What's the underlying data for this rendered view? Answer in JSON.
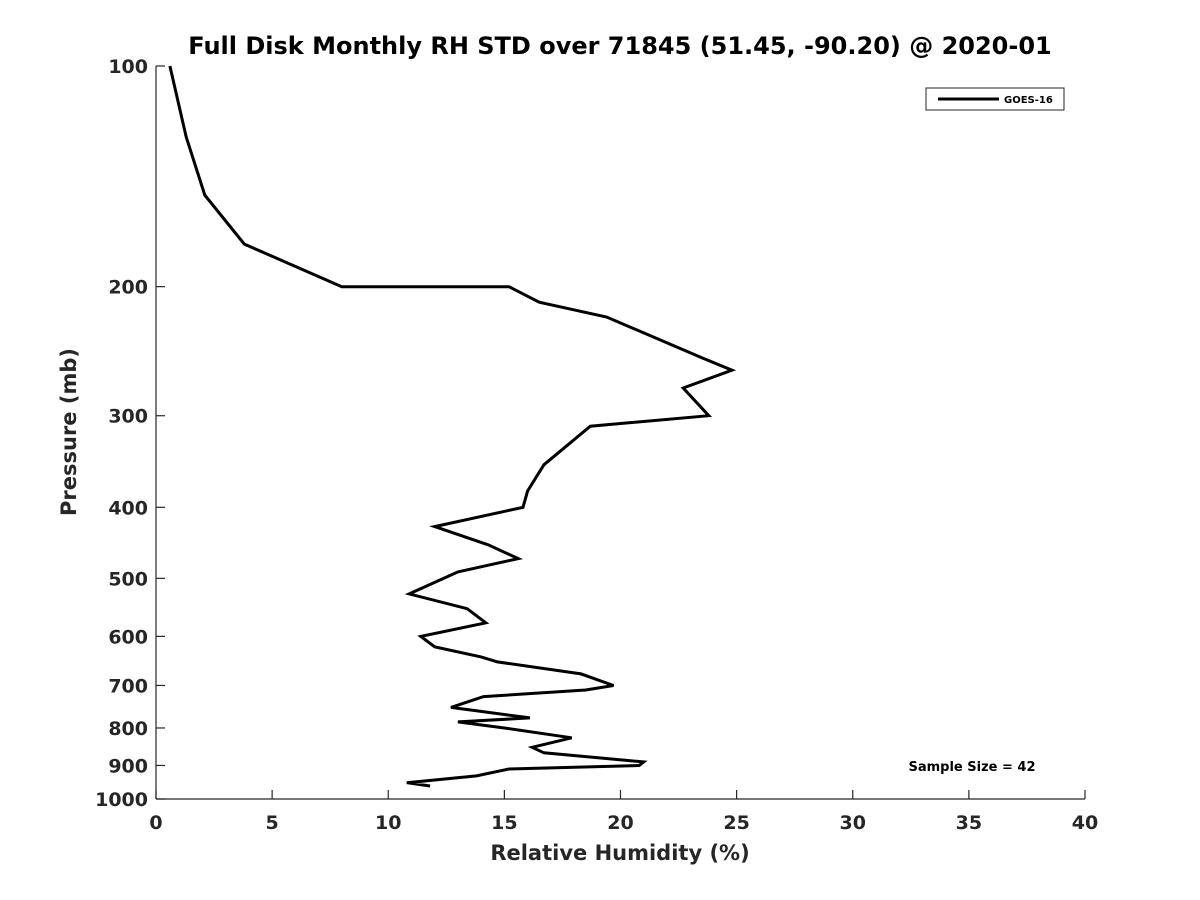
{
  "chart_data": {
    "type": "line",
    "title": "Full Disk Monthly RH STD over 71845 (51.45, -90.20) @ 2020-01",
    "xlabel": "Relative Humidity (%)",
    "ylabel": "Pressure (mb)",
    "xlim": [
      0,
      40
    ],
    "ylim": [
      100,
      1000
    ],
    "yscale": "log",
    "yreversed": true,
    "grid": false,
    "xticks": [
      "0",
      "5",
      "10",
      "15",
      "20",
      "25",
      "30",
      "35",
      "40"
    ],
    "yticks": [
      "100",
      "200",
      "300",
      "400",
      "500",
      "600",
      "700",
      "800",
      "900",
      "1000"
    ],
    "legend_position": "top-right",
    "annotation": "Sample Size = 42",
    "series": [
      {
        "name": "GOES-16",
        "color": "#000000",
        "points": [
          [
            0.6,
            100
          ],
          [
            1.3,
            125
          ],
          [
            2.1,
            150
          ],
          [
            3.8,
            175
          ],
          [
            8.0,
            200
          ],
          [
            15.2,
            200
          ],
          [
            16.5,
            210
          ],
          [
            19.4,
            220
          ],
          [
            23.5,
            250
          ],
          [
            24.8,
            260
          ],
          [
            22.7,
            275
          ],
          [
            23.8,
            300
          ],
          [
            18.7,
            310
          ],
          [
            16.7,
            350
          ],
          [
            16.0,
            380
          ],
          [
            15.8,
            400
          ],
          [
            12.0,
            425
          ],
          [
            14.3,
            450
          ],
          [
            15.6,
            470
          ],
          [
            13.0,
            490
          ],
          [
            10.9,
            525
          ],
          [
            13.4,
            550
          ],
          [
            14.2,
            575
          ],
          [
            11.4,
            600
          ],
          [
            12.0,
            620
          ],
          [
            14.0,
            640
          ],
          [
            14.7,
            650
          ],
          [
            18.3,
            675
          ],
          [
            19.7,
            700
          ],
          [
            18.5,
            710
          ],
          [
            14.1,
            725
          ],
          [
            12.7,
            750
          ],
          [
            16.1,
            775
          ],
          [
            13.0,
            785
          ],
          [
            15.0,
            800
          ],
          [
            17.9,
            825
          ],
          [
            16.2,
            850
          ],
          [
            16.7,
            865
          ],
          [
            21.0,
            890
          ],
          [
            20.8,
            900
          ],
          [
            15.2,
            910
          ],
          [
            13.8,
            930
          ],
          [
            10.8,
            950
          ],
          [
            11.8,
            960
          ]
        ]
      }
    ]
  }
}
